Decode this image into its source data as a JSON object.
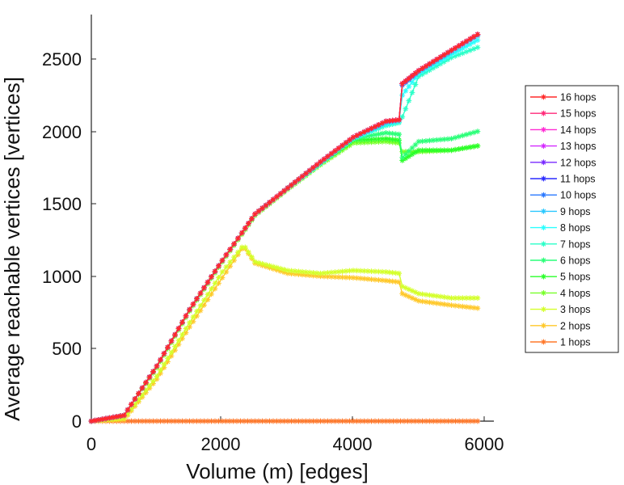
{
  "chart_data": {
    "type": "line",
    "xlabel": "Volume (m) [edges]",
    "ylabel": "Average reachable vertices [vertices]",
    "xlim": [
      0,
      6000
    ],
    "ylim": [
      0,
      2800
    ],
    "xticks": [
      0,
      2000,
      4000,
      6000
    ],
    "yticks": [
      0,
      500,
      1000,
      1500,
      2000,
      2500
    ],
    "grid": false,
    "legend_position": "right",
    "marker": "asterisk",
    "series": [
      {
        "name": "16 hops",
        "color": "#ff2a2a",
        "x": [
          0,
          500,
          1000,
          1500,
          2000,
          2300,
          2500,
          3000,
          3500,
          4000,
          4500,
          4700,
          4750,
          5000,
          5500,
          5900
        ],
        "y": [
          0,
          40,
          380,
          770,
          1110,
          1300,
          1430,
          1610,
          1790,
          1960,
          2070,
          2080,
          2330,
          2420,
          2560,
          2670
        ]
      },
      {
        "name": "15 hops",
        "color": "#ff2a78",
        "x": [
          0,
          500,
          1000,
          1500,
          2000,
          2300,
          2500,
          3000,
          3500,
          4000,
          4500,
          4700,
          4750,
          5000,
          5500,
          5900
        ],
        "y": [
          0,
          40,
          380,
          770,
          1110,
          1300,
          1430,
          1610,
          1790,
          1960,
          2070,
          2080,
          2330,
          2420,
          2560,
          2670
        ]
      },
      {
        "name": "14 hops",
        "color": "#ff2ad4",
        "x": [
          0,
          500,
          1000,
          1500,
          2000,
          2300,
          2500,
          3000,
          3500,
          4000,
          4500,
          4700,
          4750,
          5000,
          5500,
          5900
        ],
        "y": [
          0,
          40,
          380,
          770,
          1110,
          1300,
          1430,
          1610,
          1790,
          1960,
          2070,
          2080,
          2330,
          2420,
          2560,
          2670
        ]
      },
      {
        "name": "13 hops",
        "color": "#d42aff",
        "x": [
          0,
          500,
          1000,
          1500,
          2000,
          2300,
          2500,
          3000,
          3500,
          4000,
          4500,
          4700,
          4750,
          5000,
          5500,
          5900
        ],
        "y": [
          0,
          40,
          380,
          770,
          1110,
          1300,
          1430,
          1610,
          1790,
          1960,
          2070,
          2080,
          2330,
          2420,
          2560,
          2670
        ]
      },
      {
        "name": "12 hops",
        "color": "#782aff",
        "x": [
          0,
          500,
          1000,
          1500,
          2000,
          2300,
          2500,
          3000,
          3500,
          4000,
          4500,
          4700,
          4750,
          5000,
          5500,
          5900
        ],
        "y": [
          0,
          40,
          380,
          770,
          1110,
          1300,
          1430,
          1610,
          1790,
          1960,
          2070,
          2080,
          2330,
          2420,
          2560,
          2670
        ]
      },
      {
        "name": "11 hops",
        "color": "#2a2aff",
        "x": [
          0,
          500,
          1000,
          1500,
          2000,
          2300,
          2500,
          3000,
          3500,
          4000,
          4500,
          4700,
          4750,
          5000,
          5500,
          5900
        ],
        "y": [
          0,
          40,
          380,
          770,
          1110,
          1300,
          1430,
          1610,
          1790,
          1960,
          2070,
          2080,
          2330,
          2420,
          2560,
          2670
        ]
      },
      {
        "name": "10 hops",
        "color": "#2a78ff",
        "x": [
          0,
          500,
          1000,
          1500,
          2000,
          2300,
          2500,
          3000,
          3500,
          4000,
          4500,
          4700,
          4750,
          5000,
          5500,
          5900
        ],
        "y": [
          0,
          40,
          380,
          770,
          1110,
          1300,
          1430,
          1610,
          1790,
          1960,
          2070,
          2080,
          2320,
          2420,
          2560,
          2670
        ]
      },
      {
        "name": "9 hops",
        "color": "#2ac8ff",
        "x": [
          0,
          500,
          1000,
          1500,
          2000,
          2300,
          2500,
          3000,
          3500,
          4000,
          4500,
          4700,
          4750,
          5000,
          5500,
          5900
        ],
        "y": [
          0,
          40,
          380,
          770,
          1110,
          1300,
          1430,
          1610,
          1790,
          1960,
          2060,
          2080,
          2320,
          2410,
          2550,
          2660
        ]
      },
      {
        "name": "8 hops",
        "color": "#2affff",
        "x": [
          0,
          500,
          1000,
          1500,
          2000,
          2300,
          2500,
          3000,
          3500,
          4000,
          4500,
          4700,
          4750,
          5000,
          5500,
          5900
        ],
        "y": [
          0,
          40,
          380,
          770,
          1110,
          1300,
          1430,
          1610,
          1780,
          1950,
          2050,
          2070,
          2250,
          2400,
          2530,
          2630
        ]
      },
      {
        "name": "7 hops",
        "color": "#2affc8",
        "x": [
          0,
          500,
          1000,
          1500,
          2000,
          2300,
          2500,
          3000,
          3500,
          4000,
          4500,
          4700,
          4750,
          5000,
          5500,
          5900
        ],
        "y": [
          0,
          40,
          380,
          770,
          1110,
          1300,
          1430,
          1610,
          1780,
          1950,
          2040,
          2060,
          2100,
          2380,
          2510,
          2580
        ]
      },
      {
        "name": "6 hops",
        "color": "#2aff78",
        "x": [
          0,
          500,
          1000,
          1500,
          2000,
          2300,
          2500,
          3000,
          3500,
          4000,
          4500,
          4700,
          4750,
          5000,
          5500,
          5900
        ],
        "y": [
          0,
          40,
          380,
          770,
          1110,
          1300,
          1430,
          1610,
          1780,
          1950,
          1990,
          1980,
          1820,
          1930,
          1950,
          2000
        ]
      },
      {
        "name": "5 hops",
        "color": "#2aff2a",
        "x": [
          0,
          500,
          1000,
          1500,
          2000,
          2300,
          2500,
          3000,
          3500,
          4000,
          4500,
          4700,
          4750,
          5000,
          5500,
          5900
        ],
        "y": [
          0,
          40,
          380,
          770,
          1110,
          1300,
          1430,
          1610,
          1780,
          1940,
          1950,
          1940,
          1800,
          1870,
          1870,
          1900
        ]
      },
      {
        "name": "4 hops",
        "color": "#78ff2a",
        "x": [
          0,
          500,
          1000,
          1500,
          2000,
          2300,
          2500,
          3000,
          3500,
          4000,
          4500,
          4700,
          4750,
          5000,
          5500,
          5900
        ],
        "y": [
          0,
          40,
          370,
          760,
          1100,
          1290,
          1420,
          1600,
          1770,
          1920,
          1930,
          1920,
          1860,
          1860,
          1870,
          1900
        ]
      },
      {
        "name": "3 hops",
        "color": "#d4ff2a",
        "x": [
          0,
          500,
          1000,
          1500,
          2000,
          2300,
          2350,
          2500,
          3000,
          3500,
          4000,
          4500,
          4700,
          4750,
          5000,
          5500,
          5900
        ],
        "y": [
          0,
          20,
          310,
          680,
          1030,
          1200,
          1200,
          1100,
          1040,
          1020,
          1040,
          1030,
          1020,
          930,
          880,
          850,
          850
        ]
      },
      {
        "name": "2 hops",
        "color": "#ffc82a",
        "x": [
          0,
          500,
          1000,
          1500,
          2000,
          2300,
          2350,
          2500,
          3000,
          3500,
          4000,
          4500,
          4700,
          4750,
          5000,
          5500,
          5900
        ],
        "y": [
          0,
          10,
          290,
          650,
          990,
          1190,
          1190,
          1090,
          1020,
          1000,
          990,
          970,
          960,
          880,
          830,
          800,
          780
        ]
      },
      {
        "name": "1 hops",
        "color": "#ff782a",
        "x": [
          0,
          1000,
          2000,
          3000,
          4000,
          5000,
          5900
        ],
        "y": [
          0,
          0,
          0,
          0,
          0,
          0,
          0
        ]
      }
    ]
  },
  "axis_text": {
    "xlabel": "Volume (m) [edges]",
    "ylabel": "Average reachable vertices [vertices]",
    "xtick_0": "0",
    "xtick_1": "2000",
    "xtick_2": "4000",
    "xtick_3": "6000",
    "ytick_0": "0",
    "ytick_1": "500",
    "ytick_2": "1000",
    "ytick_3": "1500",
    "ytick_4": "2000",
    "ytick_5": "2500"
  }
}
